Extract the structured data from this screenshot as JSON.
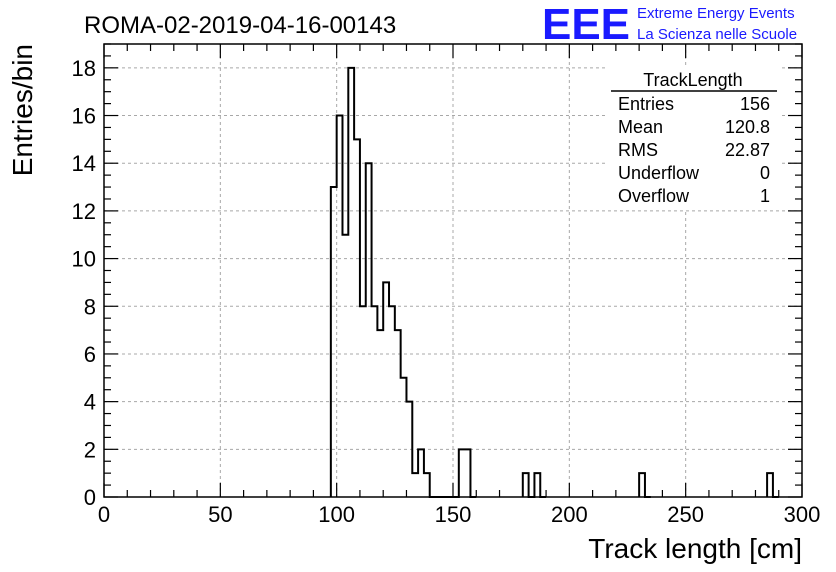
{
  "header": {
    "run_title": "ROMA-02-2019-04-16-00143",
    "logo_text": "EEE",
    "logo_line1": "Extreme Energy Events",
    "logo_line2": "La Scienza nelle Scuole",
    "logo_color": "#1a1aff"
  },
  "stats": {
    "title": "TrackLength",
    "rows": [
      {
        "label": "Entries",
        "value": "156"
      },
      {
        "label": "Mean",
        "value": "120.8"
      },
      {
        "label": "RMS",
        "value": "22.87"
      },
      {
        "label": "Underflow",
        "value": "0"
      },
      {
        "label": "Overflow",
        "value": "1"
      }
    ]
  },
  "chart_data": {
    "type": "bar",
    "style": "step-histogram",
    "xlabel": "Track length [cm]",
    "ylabel": "Entries/bin",
    "xlim": [
      0,
      300
    ],
    "ylim": [
      0,
      19
    ],
    "bin_width": 2.5,
    "xticks": [
      0,
      50,
      100,
      150,
      200,
      250,
      300
    ],
    "yticks": [
      0,
      2,
      4,
      6,
      8,
      10,
      12,
      14,
      16,
      18
    ],
    "grid": true,
    "line_color": "#000000",
    "bins": [
      {
        "x": 97.5,
        "y": 13
      },
      {
        "x": 100,
        "y": 16
      },
      {
        "x": 102.5,
        "y": 11
      },
      {
        "x": 105,
        "y": 18
      },
      {
        "x": 107.5,
        "y": 15
      },
      {
        "x": 110,
        "y": 8
      },
      {
        "x": 112.5,
        "y": 14
      },
      {
        "x": 115,
        "y": 8
      },
      {
        "x": 117.5,
        "y": 7
      },
      {
        "x": 120,
        "y": 9
      },
      {
        "x": 122.5,
        "y": 8
      },
      {
        "x": 125,
        "y": 7
      },
      {
        "x": 127.5,
        "y": 5
      },
      {
        "x": 130,
        "y": 4
      },
      {
        "x": 132.5,
        "y": 1
      },
      {
        "x": 135,
        "y": 2
      },
      {
        "x": 137.5,
        "y": 1
      },
      {
        "x": 140,
        "y": 0
      },
      {
        "x": 142.5,
        "y": 0
      },
      {
        "x": 145,
        "y": 0
      },
      {
        "x": 147.5,
        "y": 0
      },
      {
        "x": 150,
        "y": 0
      },
      {
        "x": 152.5,
        "y": 2
      },
      {
        "x": 155,
        "y": 2
      },
      {
        "x": 157.5,
        "y": 0
      },
      {
        "x": 180,
        "y": 1
      },
      {
        "x": 182.5,
        "y": 0
      },
      {
        "x": 185,
        "y": 1
      },
      {
        "x": 187.5,
        "y": 0
      },
      {
        "x": 230,
        "y": 1
      },
      {
        "x": 232.5,
        "y": 0
      },
      {
        "x": 285,
        "y": 1
      },
      {
        "x": 287.5,
        "y": 0
      }
    ]
  }
}
